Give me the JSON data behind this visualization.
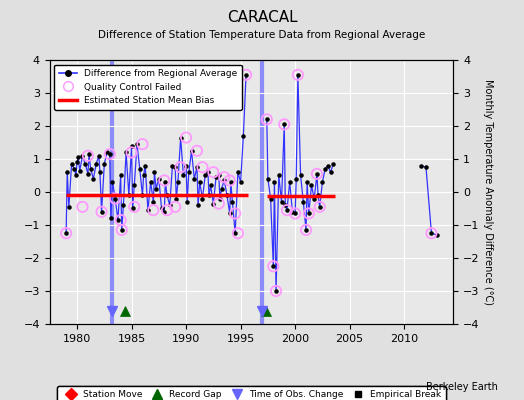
{
  "title": "CARACAL",
  "subtitle": "Difference of Station Temperature Data from Regional Average",
  "ylabel_right": "Monthly Temperature Anomaly Difference (°C)",
  "credit": "Berkeley Earth",
  "xlim": [
    1977.5,
    2014.5
  ],
  "ylim": [
    -4,
    4
  ],
  "yticks": [
    -4,
    -3,
    -2,
    -1,
    0,
    1,
    2,
    3,
    4
  ],
  "xticks": [
    1980,
    1985,
    1990,
    1995,
    2000,
    2005,
    2010
  ],
  "bg_color": "#e0e0e0",
  "plot_bg_color": "#e8e8e8",
  "grid_color": "#ffffff",
  "main_line_color": "#3333ff",
  "mean_bias_color": "#ff0000",
  "qc_failed_color": "#ff99ff",
  "dot_color": "#000000",
  "time_obs_vline_color": "#6666ff",
  "record_gap_color": "#006600",
  "station_move_color": "#ff0000",
  "empirical_break_color": "#000000",
  "bias_segments": [
    {
      "x_start": 1979.0,
      "x_end": 1995.7,
      "y": -0.08
    },
    {
      "x_start": 1997.4,
      "x_end": 2003.7,
      "y": -0.12
    }
  ],
  "time_obs_changes": [
    1983.2,
    1997.0
  ],
  "record_gaps": [
    1984.4,
    1997.3
  ],
  "data_gap_start": 1995.7,
  "data_gap_end": 1997.4,
  "main_data_seg1": [
    [
      1979.0,
      -1.25
    ],
    [
      1979.1,
      0.6
    ],
    [
      1979.25,
      -0.45
    ],
    [
      1979.5,
      0.85
    ],
    [
      1979.75,
      0.7
    ],
    [
      1979.9,
      0.5
    ],
    [
      1980.0,
      0.9
    ],
    [
      1980.1,
      1.05
    ],
    [
      1980.25,
      0.65
    ],
    [
      1980.5,
      1.1
    ],
    [
      1980.75,
      0.85
    ],
    [
      1981.0,
      0.55
    ],
    [
      1981.1,
      1.15
    ],
    [
      1981.25,
      0.7
    ],
    [
      1981.5,
      0.4
    ],
    [
      1981.75,
      0.85
    ],
    [
      1982.0,
      1.1
    ],
    [
      1982.1,
      0.6
    ],
    [
      1982.25,
      -0.6
    ],
    [
      1982.5,
      0.85
    ],
    [
      1982.75,
      1.2
    ],
    [
      1983.0,
      1.15
    ],
    [
      1983.1,
      -0.8
    ],
    [
      1983.25,
      0.3
    ],
    [
      1983.5,
      -0.2
    ],
    [
      1983.75,
      -0.85
    ],
    [
      1984.0,
      0.5
    ],
    [
      1984.1,
      -1.15
    ],
    [
      1984.25,
      -0.4
    ],
    [
      1984.5,
      1.2
    ],
    [
      1984.75,
      -0.1
    ],
    [
      1985.0,
      1.4
    ],
    [
      1985.1,
      -0.5
    ],
    [
      1985.25,
      0.2
    ],
    [
      1985.5,
      1.45
    ],
    [
      1985.75,
      0.7
    ],
    [
      1986.0,
      -0.1
    ],
    [
      1986.1,
      0.5
    ],
    [
      1986.25,
      0.8
    ],
    [
      1986.5,
      -0.55
    ],
    [
      1986.75,
      0.3
    ],
    [
      1987.0,
      -0.3
    ],
    [
      1987.1,
      0.6
    ],
    [
      1987.25,
      0.1
    ],
    [
      1987.5,
      0.4
    ],
    [
      1987.75,
      -0.5
    ],
    [
      1988.0,
      -0.6
    ],
    [
      1988.1,
      0.3
    ],
    [
      1988.25,
      -0.1
    ],
    [
      1988.5,
      -0.4
    ],
    [
      1988.75,
      0.8
    ],
    [
      1989.0,
      0.75
    ],
    [
      1989.1,
      -0.2
    ],
    [
      1989.25,
      0.3
    ],
    [
      1989.5,
      1.65
    ],
    [
      1989.75,
      0.5
    ],
    [
      1990.0,
      0.8
    ],
    [
      1990.1,
      -0.3
    ],
    [
      1990.25,
      0.6
    ],
    [
      1990.5,
      1.25
    ],
    [
      1990.75,
      0.4
    ],
    [
      1991.0,
      0.75
    ],
    [
      1991.1,
      -0.4
    ],
    [
      1991.25,
      0.3
    ],
    [
      1991.5,
      -0.2
    ],
    [
      1991.75,
      0.5
    ],
    [
      1992.0,
      0.6
    ],
    [
      1992.1,
      -0.1
    ],
    [
      1992.25,
      0.2
    ],
    [
      1992.5,
      -0.35
    ],
    [
      1992.75,
      0.45
    ],
    [
      1993.0,
      0.5
    ],
    [
      1993.1,
      -0.2
    ],
    [
      1993.25,
      0.1
    ],
    [
      1993.5,
      0.35
    ],
    [
      1993.75,
      -0.1
    ],
    [
      1994.0,
      -0.65
    ],
    [
      1994.1,
      0.3
    ],
    [
      1994.25,
      -0.3
    ],
    [
      1994.5,
      -1.25
    ],
    [
      1994.75,
      0.6
    ],
    [
      1995.0,
      0.3
    ],
    [
      1995.25,
      1.7
    ],
    [
      1995.5,
      3.55
    ]
  ],
  "main_data_seg2": [
    [
      1997.4,
      2.2
    ],
    [
      1997.5,
      0.4
    ],
    [
      1997.75,
      -0.2
    ],
    [
      1998.0,
      -2.25
    ],
    [
      1998.1,
      0.3
    ],
    [
      1998.25,
      -3.0
    ],
    [
      1998.5,
      0.5
    ],
    [
      1998.75,
      -0.3
    ],
    [
      1999.0,
      2.05
    ],
    [
      1999.1,
      -0.4
    ],
    [
      1999.25,
      -0.55
    ],
    [
      1999.5,
      0.3
    ],
    [
      1999.75,
      -0.6
    ],
    [
      2000.0,
      -0.65
    ],
    [
      2000.1,
      0.4
    ],
    [
      2000.25,
      3.55
    ],
    [
      2000.5,
      0.5
    ],
    [
      2000.75,
      -0.3
    ],
    [
      2001.0,
      -1.15
    ],
    [
      2001.1,
      0.3
    ],
    [
      2001.25,
      -0.65
    ],
    [
      2001.5,
      0.2
    ],
    [
      2001.75,
      -0.2
    ],
    [
      2002.0,
      0.55
    ],
    [
      2002.1,
      -0.1
    ],
    [
      2002.25,
      -0.45
    ],
    [
      2002.5,
      0.3
    ],
    [
      2002.75,
      0.7
    ],
    [
      2003.0,
      0.8
    ],
    [
      2003.25,
      0.6
    ],
    [
      2003.5,
      0.85
    ]
  ],
  "main_data_seg3": [
    [
      2011.5,
      0.8
    ],
    [
      2012.0,
      0.75
    ],
    [
      2012.5,
      -1.25
    ],
    [
      2013.0,
      -1.3
    ]
  ],
  "qc_failed_points": [
    [
      1979.0,
      -1.25
    ],
    [
      1980.5,
      -0.45
    ],
    [
      1981.0,
      1.1
    ],
    [
      1982.25,
      -0.6
    ],
    [
      1983.0,
      1.15
    ],
    [
      1983.5,
      -0.2
    ],
    [
      1984.0,
      -0.85
    ],
    [
      1984.1,
      -1.15
    ],
    [
      1985.0,
      1.2
    ],
    [
      1985.25,
      -0.45
    ],
    [
      1986.0,
      1.45
    ],
    [
      1987.0,
      -0.55
    ],
    [
      1988.0,
      0.35
    ],
    [
      1988.25,
      -0.55
    ],
    [
      1989.0,
      -0.45
    ],
    [
      1989.5,
      0.75
    ],
    [
      1990.0,
      1.65
    ],
    [
      1991.0,
      1.25
    ],
    [
      1991.5,
      0.75
    ],
    [
      1992.5,
      0.6
    ],
    [
      1993.0,
      -0.35
    ],
    [
      1993.5,
      0.45
    ],
    [
      1994.0,
      0.35
    ],
    [
      1994.5,
      -0.65
    ],
    [
      1994.75,
      -1.25
    ],
    [
      1995.5,
      3.55
    ],
    [
      1997.4,
      2.2
    ],
    [
      1998.0,
      -2.25
    ],
    [
      1998.25,
      -3.0
    ],
    [
      1999.0,
      2.05
    ],
    [
      1999.25,
      -0.55
    ],
    [
      2000.0,
      -0.65
    ],
    [
      2000.25,
      3.55
    ],
    [
      2001.0,
      -1.15
    ],
    [
      2001.25,
      -0.65
    ],
    [
      2002.0,
      0.55
    ],
    [
      2002.25,
      -0.45
    ],
    [
      2012.5,
      -1.25
    ]
  ]
}
